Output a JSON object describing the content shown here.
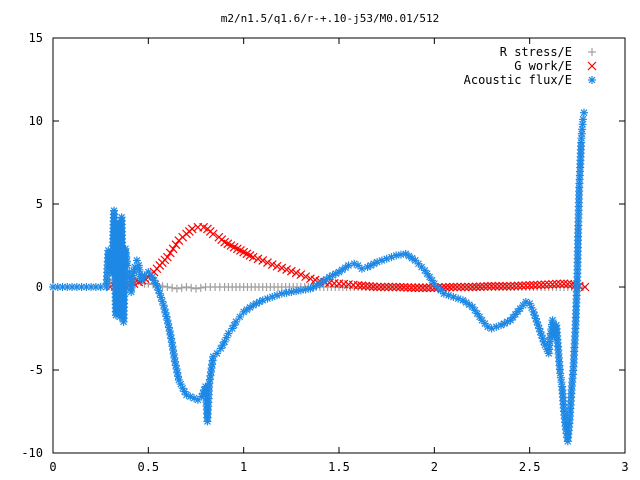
{
  "chart_data": {
    "type": "scatter",
    "title": "m2/n1.5/q1.6/r-+.10-j53/M0.01/512",
    "xlabel": "",
    "ylabel": "",
    "xlim": [
      0,
      3
    ],
    "ylim": [
      -10,
      15
    ],
    "xticks": [
      0,
      0.5,
      1,
      1.5,
      2,
      2.5,
      3
    ],
    "xtick_labels": [
      "0",
      "0.5",
      "1",
      "1.5",
      "2",
      "2.5",
      "3"
    ],
    "yticks": [
      -10,
      -5,
      0,
      5,
      10,
      15
    ],
    "ytick_labels": [
      "-10",
      "-5",
      "0",
      "5",
      "10",
      "15"
    ],
    "grid": false,
    "legend_position": "top-right",
    "series": [
      {
        "name": "R stress/E",
        "marker": "plus",
        "color": "#a0a0a0",
        "points": [
          [
            0.3,
            0.3
          ],
          [
            0.32,
            0.4
          ],
          [
            0.34,
            0.5
          ],
          [
            0.36,
            0.6
          ],
          [
            0.38,
            0.6
          ],
          [
            0.4,
            0.5
          ],
          [
            0.42,
            0.5
          ],
          [
            0.44,
            0.4
          ],
          [
            0.46,
            0.3
          ],
          [
            0.48,
            0.2
          ],
          [
            0.5,
            0.2
          ],
          [
            0.55,
            0.1
          ],
          [
            0.6,
            0.0
          ],
          [
            0.65,
            -0.1
          ],
          [
            0.7,
            0.0
          ],
          [
            0.75,
            -0.1
          ],
          [
            0.8,
            0.0
          ],
          [
            0.85,
            0.0
          ],
          [
            0.9,
            0.0
          ],
          [
            1.0,
            0.0
          ],
          [
            1.1,
            0.0
          ],
          [
            1.2,
            0.0
          ],
          [
            1.3,
            0.0
          ],
          [
            1.4,
            0.0
          ],
          [
            1.5,
            0.0
          ],
          [
            1.6,
            0.0
          ],
          [
            1.7,
            0.0
          ],
          [
            1.8,
            0.0
          ],
          [
            1.9,
            0.0
          ],
          [
            2.0,
            0.0
          ],
          [
            2.1,
            0.0
          ],
          [
            2.2,
            0.0
          ],
          [
            2.3,
            0.0
          ],
          [
            2.4,
            0.0
          ],
          [
            2.5,
            0.0
          ],
          [
            2.6,
            0.0
          ],
          [
            2.7,
            0.0
          ],
          [
            2.78,
            0.0
          ]
        ]
      },
      {
        "name": "G work/E",
        "marker": "cross",
        "color": "#ff0000",
        "points": [
          [
            0.3,
            0.0
          ],
          [
            0.35,
            0.05
          ],
          [
            0.4,
            0.1
          ],
          [
            0.45,
            0.3
          ],
          [
            0.5,
            0.6
          ],
          [
            0.53,
            0.9
          ],
          [
            0.56,
            1.3
          ],
          [
            0.6,
            1.8
          ],
          [
            0.63,
            2.3
          ],
          [
            0.66,
            2.8
          ],
          [
            0.7,
            3.2
          ],
          [
            0.73,
            3.5
          ],
          [
            0.76,
            3.6
          ],
          [
            0.79,
            3.6
          ],
          [
            0.81,
            3.5
          ],
          [
            0.84,
            3.2
          ],
          [
            0.87,
            3.0
          ],
          [
            0.9,
            2.7
          ],
          [
            0.95,
            2.4
          ],
          [
            1.0,
            2.1
          ],
          [
            1.05,
            1.8
          ],
          [
            1.1,
            1.6
          ],
          [
            1.15,
            1.35
          ],
          [
            1.2,
            1.15
          ],
          [
            1.25,
            0.95
          ],
          [
            1.3,
            0.75
          ],
          [
            1.35,
            0.5
          ],
          [
            1.4,
            0.35
          ],
          [
            1.45,
            0.25
          ],
          [
            1.5,
            0.2
          ],
          [
            1.55,
            0.15
          ],
          [
            1.6,
            0.1
          ],
          [
            1.7,
            0.0
          ],
          [
            1.8,
            0.0
          ],
          [
            1.9,
            -0.05
          ],
          [
            2.0,
            -0.05
          ],
          [
            2.1,
            0.0
          ],
          [
            2.2,
            0.0
          ],
          [
            2.3,
            0.05
          ],
          [
            2.4,
            0.05
          ],
          [
            2.5,
            0.1
          ],
          [
            2.6,
            0.15
          ],
          [
            2.68,
            0.2
          ],
          [
            2.72,
            0.15
          ],
          [
            2.76,
            0.05
          ],
          [
            2.79,
            0.0
          ]
        ]
      },
      {
        "name": "Acoustic flux/E",
        "marker": "star",
        "color": "#1e88e5",
        "points": [
          [
            0.0,
            0.0
          ],
          [
            0.05,
            0.0
          ],
          [
            0.1,
            0.0
          ],
          [
            0.15,
            0.0
          ],
          [
            0.2,
            0.0
          ],
          [
            0.25,
            0.0
          ],
          [
            0.28,
            0.0
          ],
          [
            0.29,
            2.2
          ],
          [
            0.3,
            1.2
          ],
          [
            0.31,
            0.8
          ],
          [
            0.32,
            4.6
          ],
          [
            0.33,
            -1.7
          ],
          [
            0.34,
            3.8
          ],
          [
            0.35,
            -1.8
          ],
          [
            0.36,
            4.2
          ],
          [
            0.37,
            -2.1
          ],
          [
            0.38,
            2.3
          ],
          [
            0.39,
            1.3
          ],
          [
            0.4,
            0.9
          ],
          [
            0.41,
            -0.3
          ],
          [
            0.42,
            0.7
          ],
          [
            0.43,
            1.2
          ],
          [
            0.44,
            1.6
          ],
          [
            0.45,
            1.3
          ],
          [
            0.46,
            0.5
          ],
          [
            0.47,
            0.5
          ],
          [
            0.48,
            0.7
          ],
          [
            0.5,
            0.9
          ],
          [
            0.52,
            0.6
          ],
          [
            0.54,
            0.2
          ],
          [
            0.56,
            -0.4
          ],
          [
            0.58,
            -1.1
          ],
          [
            0.6,
            -2.0
          ],
          [
            0.62,
            -3.1
          ],
          [
            0.64,
            -4.5
          ],
          [
            0.66,
            -5.6
          ],
          [
            0.68,
            -6.1
          ],
          [
            0.7,
            -6.5
          ],
          [
            0.72,
            -6.6
          ],
          [
            0.74,
            -6.7
          ],
          [
            0.76,
            -6.8
          ],
          [
            0.78,
            -6.6
          ],
          [
            0.8,
            -6.0
          ],
          [
            0.81,
            -8.1
          ],
          [
            0.82,
            -5.8
          ],
          [
            0.84,
            -4.2
          ],
          [
            0.86,
            -4.0
          ],
          [
            0.88,
            -3.7
          ],
          [
            0.9,
            -3.3
          ],
          [
            0.92,
            -2.8
          ],
          [
            0.94,
            -2.5
          ],
          [
            0.96,
            -2.1
          ],
          [
            0.98,
            -1.8
          ],
          [
            1.0,
            -1.5
          ],
          [
            1.05,
            -1.1
          ],
          [
            1.1,
            -0.8
          ],
          [
            1.15,
            -0.6
          ],
          [
            1.2,
            -0.4
          ],
          [
            1.25,
            -0.3
          ],
          [
            1.3,
            -0.2
          ],
          [
            1.35,
            -0.1
          ],
          [
            1.4,
            0.2
          ],
          [
            1.45,
            0.6
          ],
          [
            1.5,
            0.9
          ],
          [
            1.55,
            1.3
          ],
          [
            1.58,
            1.4
          ],
          [
            1.6,
            1.3
          ],
          [
            1.62,
            1.1
          ],
          [
            1.65,
            1.2
          ],
          [
            1.7,
            1.5
          ],
          [
            1.75,
            1.7
          ],
          [
            1.8,
            1.9
          ],
          [
            1.85,
            2.0
          ],
          [
            1.9,
            1.6
          ],
          [
            1.95,
            1.0
          ],
          [
            2.0,
            0.2
          ],
          [
            2.05,
            -0.4
          ],
          [
            2.1,
            -0.6
          ],
          [
            2.15,
            -0.8
          ],
          [
            2.2,
            -1.2
          ],
          [
            2.25,
            -2.0
          ],
          [
            2.28,
            -2.4
          ],
          [
            2.3,
            -2.5
          ],
          [
            2.35,
            -2.3
          ],
          [
            2.4,
            -2.0
          ],
          [
            2.45,
            -1.3
          ],
          [
            2.48,
            -0.9
          ],
          [
            2.5,
            -1.0
          ],
          [
            2.52,
            -1.5
          ],
          [
            2.55,
            -2.5
          ],
          [
            2.58,
            -3.5
          ],
          [
            2.6,
            -4.0
          ],
          [
            2.61,
            -2.8
          ],
          [
            2.62,
            -2.0
          ],
          [
            2.63,
            -3.0
          ],
          [
            2.64,
            -2.3
          ],
          [
            2.65,
            -3.8
          ],
          [
            2.66,
            -5.2
          ],
          [
            2.67,
            -6.0
          ],
          [
            2.68,
            -7.5
          ],
          [
            2.69,
            -8.6
          ],
          [
            2.7,
            -9.3
          ],
          [
            2.71,
            -8.0
          ],
          [
            2.72,
            -6.2
          ],
          [
            2.73,
            -4.8
          ],
          [
            2.74,
            -2.5
          ],
          [
            2.75,
            0.6
          ],
          [
            2.755,
            3.7
          ],
          [
            2.76,
            6.0
          ],
          [
            2.765,
            7.2
          ],
          [
            2.77,
            8.7
          ],
          [
            2.775,
            9.5
          ],
          [
            2.78,
            10.1
          ],
          [
            2.785,
            10.5
          ]
        ]
      }
    ]
  }
}
